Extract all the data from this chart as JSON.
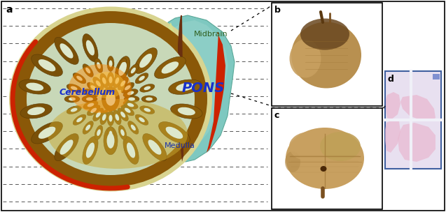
{
  "fig_width": 6.37,
  "fig_height": 3.04,
  "dpi": 100,
  "bg_color": "#ffffff",
  "border_color": "#000000",
  "panel_a_label": "a",
  "panel_b_label": "b",
  "panel_c_label": "c",
  "panel_d_label": "d",
  "cerebellum_outer_color": "#c8a020",
  "cerebellum_yellow_green": "#d4c870",
  "cerebellum_inner_light": "#c8d8b8",
  "cerebellum_cortex_brown": "#8B5a10",
  "cerebellum_white": "#e8e8d0",
  "cerebellum_red_rim": "#cc2200",
  "pons_color": "#7ec8c0",
  "pons_light": "#a8d8d0",
  "brainstem_brown": "#6a3010",
  "brainstem_red": "#cc2200",
  "stem_green": "#c8d490",
  "text_pons": "PONS",
  "text_cerebellum": "Cerebellum",
  "text_midbrain": "Midbrain",
  "text_medulla": "Medulla",
  "pons_text_color": "#1830cc",
  "cerebellum_text_color": "#1830cc",
  "midbrain_text_color": "#306020",
  "medulla_text_color": "#1830aa",
  "dashed_line_color": "#555555",
  "num_dashed_lines": 12,
  "dotted_connector_color": "#000000",
  "histo_bg": "#f0eaf4",
  "histo_pink": "#e8b8d0",
  "histo_border": "#4060a0",
  "histo_light_bg": "#e8e0f0"
}
